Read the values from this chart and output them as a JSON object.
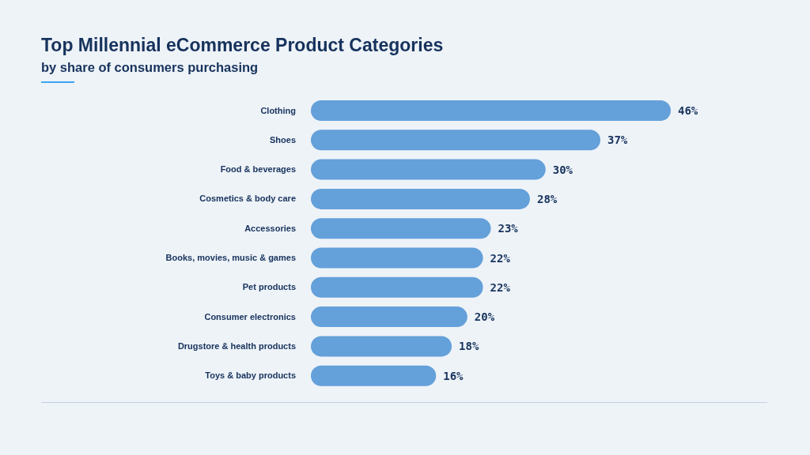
{
  "chart_data": {
    "type": "bar",
    "orientation": "horizontal",
    "title": "Top Millennial eCommerce Product Categories",
    "subtitle": "by share of consumers purchasing",
    "categories": [
      "Clothing",
      "Shoes",
      "Food & beverages",
      "Cosmetics & body care",
      "Accessories",
      "Books, movies, music & games",
      "Pet products",
      "Consumer electronics",
      "Drugstore & health products",
      "Toys & baby products"
    ],
    "values": [
      46,
      37,
      30,
      28,
      23,
      22,
      22,
      20,
      18,
      16
    ],
    "value_labels": [
      "46%",
      "37%",
      "30%",
      "28%",
      "23%",
      "22%",
      "22%",
      "20%",
      "18%",
      "16%"
    ],
    "color": "#64a0d9",
    "tick_labels": "y"
  }
}
